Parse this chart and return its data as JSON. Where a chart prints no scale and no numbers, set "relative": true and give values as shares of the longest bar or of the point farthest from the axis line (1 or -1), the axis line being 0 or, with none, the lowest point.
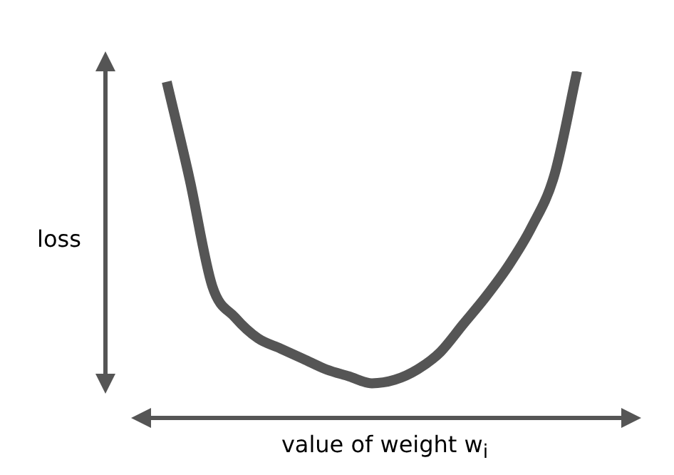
{
  "chart_data": {
    "type": "line",
    "relative": true,
    "xlabel": "value of weight w$_{i}$",
    "ylabel": "loss",
    "marker": "none",
    "line_style": "solid",
    "legend": false,
    "categories": [
      null,
      null,
      null,
      null,
      null,
      null,
      null,
      null,
      null,
      null,
      null,
      null,
      null,
      null,
      null,
      null,
      null,
      null,
      null
    ],
    "series": [
      {
        "color": "#555555",
        "values": [
          0.97,
          0.69,
          0.38,
          0.29,
          0.23,
          0.2,
          0.17,
          0.14,
          0.12,
          0.1,
          0.11,
          0.14,
          0.19,
          0.27,
          0.35,
          0.44,
          0.55,
          0.7,
          1
        ]
      }
    ]
  }
}
